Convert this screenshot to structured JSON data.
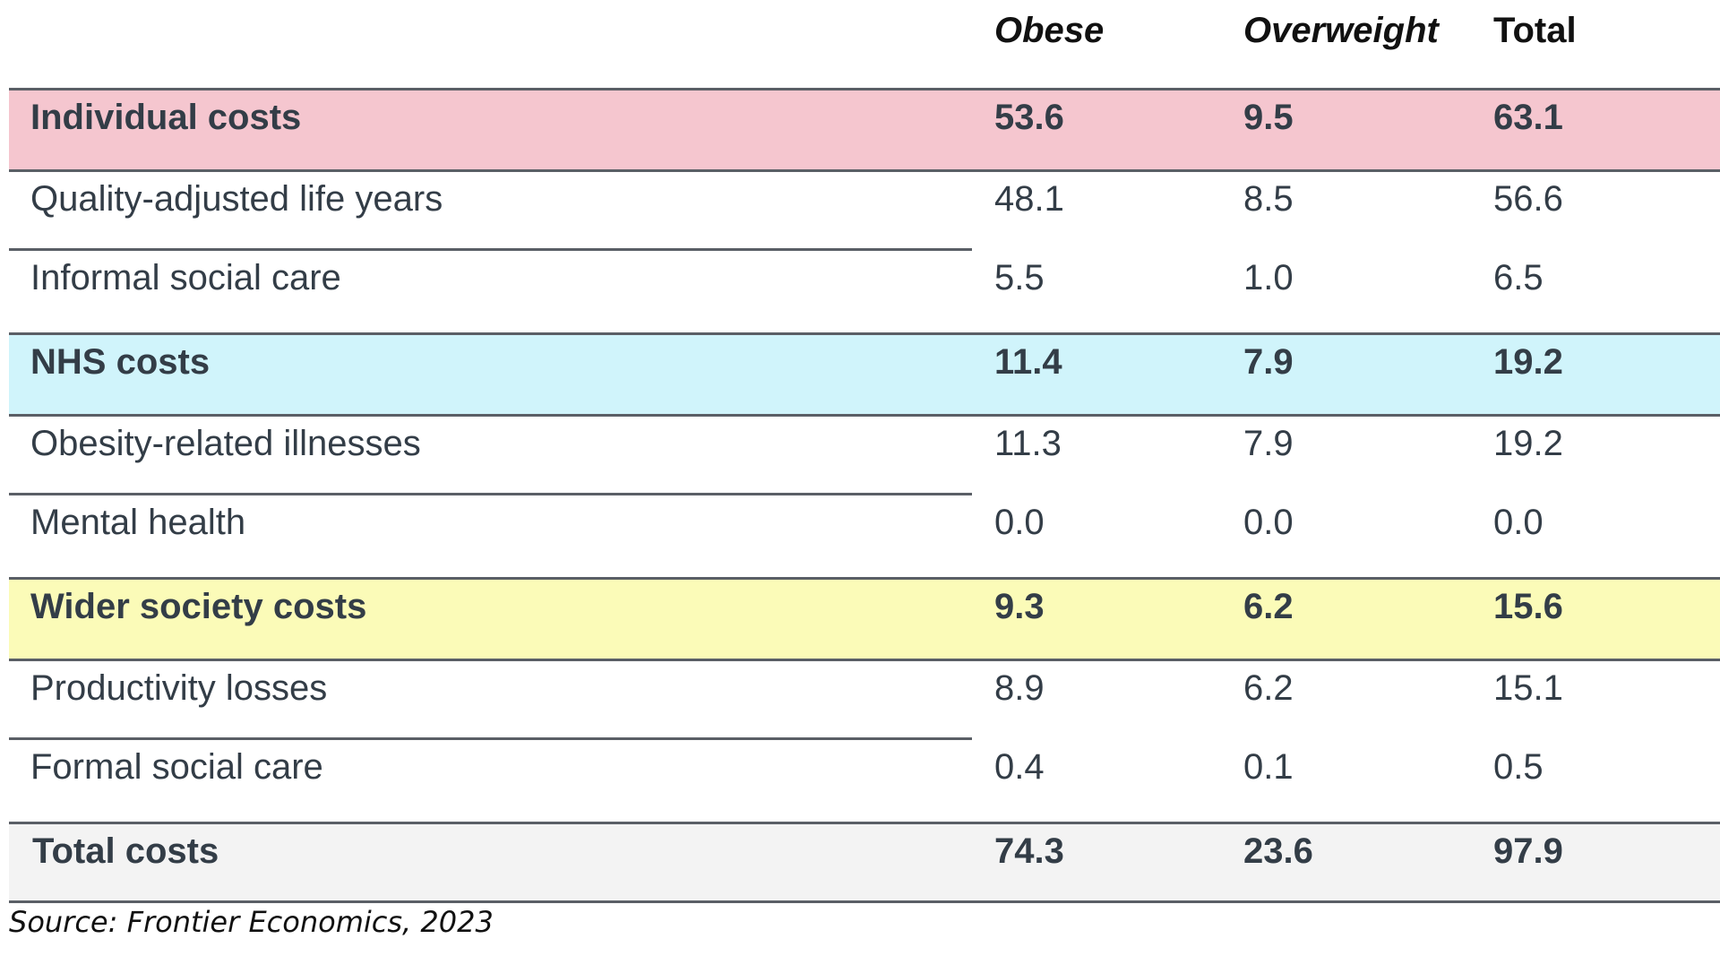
{
  "columns": [
    "Obese",
    "Overweight",
    "Total"
  ],
  "colors": {
    "individual": "#f5c6cf",
    "nhs": "#d0f4fb",
    "wider": "#fbfbb8",
    "total": "#f3f3f3"
  },
  "rows": [
    {
      "label": "Individual costs",
      "obese": "53.6",
      "overweight": "9.5",
      "total": "63.1"
    },
    {
      "label": "Quality-adjusted life years",
      "obese": "48.1",
      "overweight": "8.5",
      "total": "56.6"
    },
    {
      "label": "Informal social care",
      "obese": "5.5",
      "overweight": "1.0",
      "total": "6.5"
    },
    {
      "label": "NHS costs",
      "obese": "11.4",
      "overweight": "7.9",
      "total": "19.2"
    },
    {
      "label": "Obesity-related illnesses",
      "obese": "11.3",
      "overweight": "7.9",
      "total": "19.2"
    },
    {
      "label": "Mental health",
      "obese": "0.0",
      "overweight": "0.0",
      "total": "0.0"
    },
    {
      "label": "Wider society costs",
      "obese": "9.3",
      "overweight": "6.2",
      "total": "15.6"
    },
    {
      "label": "Productivity losses",
      "obese": "8.9",
      "overweight": "6.2",
      "total": "15.1"
    },
    {
      "label": "Formal social care",
      "obese": "0.4",
      "overweight": "0.1",
      "total": "0.5"
    },
    {
      "label": "Total costs",
      "obese": "74.3",
      "overweight": "23.6",
      "total": "97.9"
    }
  ],
  "source": "Source: Frontier Economics, 2023"
}
